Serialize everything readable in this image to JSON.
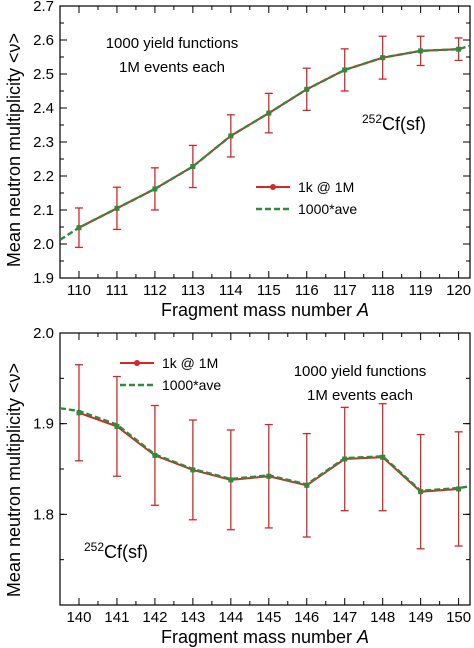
{
  "ylabel_shared": "Mean neutron multiplicity <ν>",
  "chart_data": [
    {
      "type": "line",
      "xlabel": "Fragment mass number ",
      "xlabel_italic": "A",
      "ylabel": "Mean neutron multiplicity <ν>",
      "xlim": [
        109.5,
        120.3
      ],
      "ylim": [
        1.9,
        2.7
      ],
      "xticks": [
        110,
        111,
        112,
        113,
        114,
        115,
        116,
        117,
        118,
        119,
        120
      ],
      "yticks": [
        1.9,
        2.0,
        2.1,
        2.2,
        2.3,
        2.4,
        2.5,
        2.6,
        2.7
      ],
      "ytick_labels": [
        "1.9",
        "2.0",
        "2.1",
        "2.2",
        "2.3",
        "2.4",
        "2.5",
        "2.6",
        "2.7"
      ],
      "annotation_line1": "1000 yield functions",
      "annotation_line2": "1M events each",
      "nucleus_sup": "252",
      "nucleus_label": "Cf(sf)",
      "legend": [
        "1k @ 1M",
        "1000*ave"
      ],
      "series": [
        {
          "name": "1k @ 1M",
          "color": "#d62728",
          "style": "solid-with-errorbars",
          "x": [
            110,
            111,
            112,
            113,
            114,
            115,
            116,
            117,
            118,
            119,
            120
          ],
          "y": [
            2.048,
            2.105,
            2.162,
            2.228,
            2.318,
            2.385,
            2.455,
            2.512,
            2.548,
            2.568,
            2.573
          ],
          "err": [
            0.058,
            0.062,
            0.062,
            0.062,
            0.062,
            0.058,
            0.062,
            0.062,
            0.063,
            0.043,
            0.033
          ]
        },
        {
          "name": "1000*ave",
          "color": "#2e8b3a",
          "style": "dashed",
          "x": [
            109.5,
            110,
            111,
            112,
            113,
            114,
            115,
            116,
            117,
            118,
            119,
            120,
            120.3
          ],
          "y": [
            2.012,
            2.048,
            2.105,
            2.162,
            2.228,
            2.318,
            2.385,
            2.455,
            2.512,
            2.548,
            2.568,
            2.573,
            2.583
          ]
        }
      ]
    },
    {
      "type": "line",
      "xlabel": "Fragment mass number ",
      "xlabel_italic": "A",
      "ylabel": "Mean neutron multiplicity <ν>",
      "xlim": [
        139.5,
        150.3
      ],
      "ylim": [
        1.7,
        2.0
      ],
      "xticks": [
        140,
        141,
        142,
        143,
        144,
        145,
        146,
        147,
        148,
        149,
        150
      ],
      "yticks": [
        1.8,
        1.9,
        2.0
      ],
      "ytick_labels": [
        "1.8",
        "1.9",
        "2.0"
      ],
      "annotation_line1": "1000 yield functions",
      "annotation_line2": "1M events each",
      "nucleus_sup": "252",
      "nucleus_label": "Cf(sf)",
      "legend": [
        "1k @ 1M",
        "1000*ave"
      ],
      "series": [
        {
          "name": "1k @ 1M",
          "color": "#d62728",
          "style": "solid-with-errorbars",
          "x": [
            140,
            141,
            142,
            143,
            144,
            145,
            146,
            147,
            148,
            149,
            150
          ],
          "y": [
            1.912,
            1.897,
            1.865,
            1.849,
            1.838,
            1.842,
            1.832,
            1.861,
            1.863,
            1.825,
            1.828
          ],
          "err": [
            0.053,
            0.055,
            0.055,
            0.055,
            0.055,
            0.057,
            0.057,
            0.057,
            0.059,
            0.063,
            0.063
          ]
        },
        {
          "name": "1000*ave",
          "color": "#2e8b3a",
          "style": "dashed",
          "x": [
            139.5,
            140,
            141,
            142,
            143,
            144,
            145,
            146,
            147,
            148,
            149,
            150,
            150.3
          ],
          "y": [
            1.917,
            1.914,
            1.899,
            1.866,
            1.85,
            1.839,
            1.843,
            1.833,
            1.862,
            1.864,
            1.826,
            1.829,
            1.831
          ]
        }
      ]
    }
  ]
}
